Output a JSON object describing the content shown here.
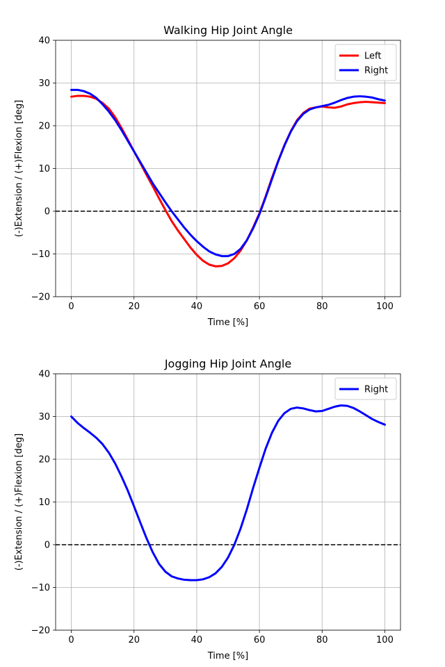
{
  "figure": {
    "background": "#ffffff"
  },
  "chart_data": [
    {
      "type": "line",
      "title": "Walking Hip Joint Angle",
      "xlabel": "Time [%]",
      "ylabel": "(-)Extension / (+)Flexion [deg]",
      "xlim": [
        -5,
        105
      ],
      "ylim": [
        -20,
        40
      ],
      "xticks": [
        "0",
        "20",
        "40",
        "60",
        "80",
        "100"
      ],
      "yticks": [
        "−20",
        "−10",
        "0",
        "10",
        "20",
        "30",
        "40"
      ],
      "grid": true,
      "legend_position": "upper right",
      "reference_line": {
        "y": 0,
        "style": "dashed",
        "color": "#000000"
      },
      "x": [
        0,
        2,
        4,
        6,
        8,
        10,
        12,
        14,
        16,
        18,
        20,
        22,
        24,
        26,
        28,
        30,
        32,
        34,
        36,
        38,
        40,
        42,
        44,
        46,
        48,
        50,
        52,
        54,
        56,
        58,
        60,
        62,
        64,
        66,
        68,
        70,
        72,
        74,
        76,
        78,
        80,
        82,
        84,
        86,
        88,
        90,
        92,
        94,
        96,
        98,
        100
      ],
      "series": [
        {
          "name": "Left",
          "color": "#ff0000",
          "values": [
            26.8,
            27.0,
            27.0,
            26.8,
            26.3,
            25.3,
            24.0,
            22.0,
            19.5,
            16.8,
            14.0,
            11.3,
            8.5,
            5.8,
            3.0,
            0.3,
            -2.3,
            -4.5,
            -6.5,
            -8.5,
            -10.2,
            -11.6,
            -12.5,
            -12.9,
            -12.8,
            -12.2,
            -11.0,
            -9.2,
            -6.8,
            -3.8,
            -0.5,
            3.5,
            7.8,
            11.8,
            15.5,
            18.7,
            21.3,
            23.0,
            24.0,
            24.3,
            24.5,
            24.3,
            24.2,
            24.5,
            25.0,
            25.3,
            25.5,
            25.6,
            25.5,
            25.4,
            25.3
          ]
        },
        {
          "name": "Right",
          "color": "#0000ff",
          "values": [
            28.4,
            28.4,
            28.1,
            27.5,
            26.5,
            25.0,
            23.3,
            21.3,
            19.0,
            16.5,
            14.0,
            11.5,
            9.0,
            6.5,
            4.3,
            2.1,
            0.0,
            -1.9,
            -3.8,
            -5.5,
            -7.0,
            -8.3,
            -9.4,
            -10.1,
            -10.5,
            -10.5,
            -10.0,
            -8.8,
            -6.8,
            -4.0,
            -0.7,
            3.3,
            7.5,
            11.7,
            15.4,
            18.6,
            21.1,
            22.8,
            23.8,
            24.3,
            24.6,
            24.9,
            25.4,
            26.0,
            26.5,
            26.8,
            26.9,
            26.8,
            26.6,
            26.2,
            25.9
          ]
        }
      ]
    },
    {
      "type": "line",
      "title": "Jogging Hip Joint Angle",
      "xlabel": "Time [%]",
      "ylabel": "(-)Extension / (+)Flexion [deg]",
      "xlim": [
        -5,
        105
      ],
      "ylim": [
        -20,
        40
      ],
      "xticks": [
        "0",
        "20",
        "40",
        "60",
        "80",
        "100"
      ],
      "yticks": [
        "−20",
        "−10",
        "0",
        "10",
        "20",
        "30",
        "40"
      ],
      "grid": true,
      "legend_position": "upper right",
      "reference_line": {
        "y": 0,
        "style": "dashed",
        "color": "#000000"
      },
      "x": [
        0,
        2,
        4,
        6,
        8,
        10,
        12,
        14,
        16,
        18,
        20,
        22,
        24,
        26,
        28,
        30,
        32,
        34,
        36,
        38,
        40,
        42,
        44,
        46,
        48,
        50,
        52,
        54,
        56,
        58,
        60,
        62,
        64,
        66,
        68,
        70,
        72,
        74,
        76,
        78,
        80,
        82,
        84,
        86,
        88,
        90,
        92,
        94,
        96,
        98,
        100
      ],
      "series": [
        {
          "name": "Right",
          "color": "#0000ff",
          "values": [
            30.0,
            28.5,
            27.3,
            26.2,
            25.0,
            23.5,
            21.5,
            19.0,
            16.0,
            12.7,
            9.0,
            5.2,
            1.5,
            -1.8,
            -4.5,
            -6.3,
            -7.4,
            -7.9,
            -8.2,
            -8.3,
            -8.3,
            -8.1,
            -7.6,
            -6.7,
            -5.2,
            -3.0,
            0.0,
            3.8,
            8.3,
            13.3,
            18.0,
            22.5,
            26.2,
            29.0,
            30.8,
            31.8,
            32.1,
            31.9,
            31.5,
            31.2,
            31.3,
            31.8,
            32.3,
            32.6,
            32.5,
            32.0,
            31.2,
            30.3,
            29.4,
            28.7,
            28.1
          ]
        }
      ]
    }
  ]
}
